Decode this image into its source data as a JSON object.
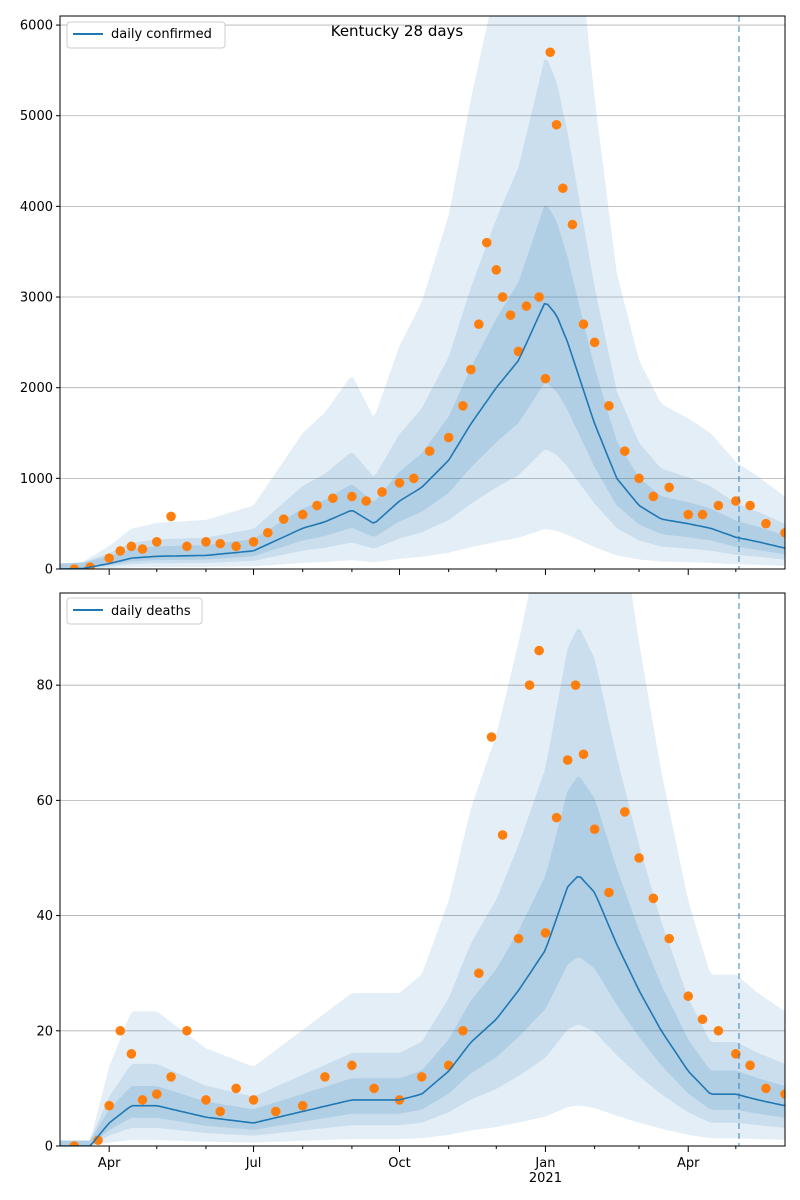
{
  "title": "Kentucky 28 days",
  "colors": {
    "model_line": "#1f77b4",
    "observed_points": "#ff7f0e",
    "band": "#1f77b4",
    "grid": "#b0b0b0",
    "vline": "#1f77b4"
  },
  "x_axis": {
    "major_ticks": [
      {
        "date": "2020-04-01",
        "label": "Apr",
        "sublabel": ""
      },
      {
        "date": "2020-07-01",
        "label": "Jul",
        "sublabel": ""
      },
      {
        "date": "2020-10-01",
        "label": "Oct",
        "sublabel": ""
      },
      {
        "date": "2021-01-01",
        "label": "Jan",
        "sublabel": "2021"
      },
      {
        "date": "2021-04-01",
        "label": "Apr",
        "sublabel": ""
      }
    ],
    "minor_ticks": [
      "2020-05-01",
      "2020-06-01",
      "2020-08-01",
      "2020-09-01",
      "2020-11-01",
      "2020-12-01",
      "2021-02-01",
      "2021-03-01",
      "2021-05-01"
    ],
    "range": [
      "2020-03-01",
      "2021-06-01"
    ],
    "forecast_start": "2021-05-03"
  },
  "chart_data": [
    {
      "type": "line",
      "legend": "daily confirmed",
      "legend_position": "upper-left",
      "ylim": [
        0,
        6100
      ],
      "yticks": [
        0,
        1000,
        2000,
        3000,
        4000,
        5000,
        6000
      ],
      "grid": "horizontal",
      "series": [
        {
          "name": "daily confirmed",
          "kind": "model-median",
          "x": [
            "2020-03-01",
            "2020-03-15",
            "2020-04-01",
            "2020-04-15",
            "2020-05-01",
            "2020-06-01",
            "2020-07-01",
            "2020-08-01",
            "2020-08-15",
            "2020-09-01",
            "2020-09-15",
            "2020-10-01",
            "2020-10-15",
            "2020-11-01",
            "2020-11-15",
            "2020-12-01",
            "2020-12-15",
            "2021-01-01",
            "2021-01-08",
            "2021-01-15",
            "2021-02-01",
            "2021-02-15",
            "2021-03-01",
            "2021-03-15",
            "2021-04-01",
            "2021-04-15",
            "2021-05-01",
            "2021-05-15",
            "2021-06-01"
          ],
          "y": [
            0,
            5,
            60,
            120,
            140,
            150,
            200,
            450,
            520,
            650,
            500,
            750,
            900,
            1200,
            1600,
            2000,
            2300,
            2950,
            2800,
            2500,
            1600,
            1000,
            700,
            550,
            500,
            450,
            350,
            300,
            230
          ]
        },
        {
          "name": "",
          "kind": "observed",
          "x": [
            "2020-03-10",
            "2020-03-20",
            "2020-04-01",
            "2020-04-08",
            "2020-04-15",
            "2020-04-22",
            "2020-05-01",
            "2020-05-10",
            "2020-05-20",
            "2020-06-01",
            "2020-06-10",
            "2020-06-20",
            "2020-07-01",
            "2020-07-10",
            "2020-07-20",
            "2020-08-01",
            "2020-08-10",
            "2020-08-20",
            "2020-09-01",
            "2020-09-10",
            "2020-09-20",
            "2020-10-01",
            "2020-10-10",
            "2020-10-20",
            "2020-11-01",
            "2020-11-10",
            "2020-11-15",
            "2020-11-20",
            "2020-11-25",
            "2020-12-01",
            "2020-12-05",
            "2020-12-10",
            "2020-12-15",
            "2020-12-20",
            "2020-12-28",
            "2021-01-01",
            "2021-01-04",
            "2021-01-08",
            "2021-01-12",
            "2021-01-18",
            "2021-01-25",
            "2021-02-01",
            "2021-02-10",
            "2021-02-20",
            "2021-03-01",
            "2021-03-10",
            "2021-03-20",
            "2021-04-01",
            "2021-04-10",
            "2021-04-20",
            "2021-05-01",
            "2021-05-10",
            "2021-05-20",
            "2021-06-01"
          ],
          "y": [
            0,
            20,
            120,
            200,
            250,
            220,
            300,
            580,
            250,
            300,
            280,
            250,
            300,
            400,
            550,
            600,
            700,
            780,
            800,
            750,
            850,
            950,
            1000,
            1300,
            1450,
            1800,
            2200,
            2700,
            3600,
            3300,
            3000,
            2800,
            2400,
            2900,
            3000,
            2100,
            5700,
            4900,
            4200,
            3800,
            2700,
            2500,
            1800,
            1300,
            1000,
            800,
            900,
            600,
            600,
            700,
            750,
            700,
            500,
            400
          ]
        }
      ]
    },
    {
      "type": "line",
      "legend": "daily deaths",
      "legend_position": "upper-left",
      "ylim": [
        0,
        96
      ],
      "yticks": [
        0,
        20,
        40,
        60,
        80
      ],
      "grid": "horizontal",
      "series": [
        {
          "name": "daily deaths",
          "kind": "model-median",
          "x": [
            "2020-03-01",
            "2020-03-20",
            "2020-04-01",
            "2020-04-15",
            "2020-05-01",
            "2020-06-01",
            "2020-07-01",
            "2020-08-01",
            "2020-09-01",
            "2020-10-01",
            "2020-10-15",
            "2020-11-01",
            "2020-11-15",
            "2020-12-01",
            "2020-12-15",
            "2021-01-01",
            "2021-01-15",
            "2021-01-22",
            "2021-02-01",
            "2021-02-15",
            "2021-03-01",
            "2021-03-15",
            "2021-04-01",
            "2021-04-15",
            "2021-05-01",
            "2021-05-15",
            "2021-06-01"
          ],
          "y": [
            0,
            0,
            4,
            7,
            7,
            5,
            4,
            6,
            8,
            8,
            9,
            13,
            18,
            22,
            27,
            34,
            45,
            47,
            44,
            35,
            27,
            20,
            13,
            9,
            9,
            8,
            7
          ]
        },
        {
          "name": "",
          "kind": "observed",
          "x": [
            "2020-03-10",
            "2020-03-25",
            "2020-04-01",
            "2020-04-08",
            "2020-04-15",
            "2020-04-22",
            "2020-05-01",
            "2020-05-10",
            "2020-05-20",
            "2020-06-01",
            "2020-06-10",
            "2020-06-20",
            "2020-07-01",
            "2020-07-15",
            "2020-08-01",
            "2020-08-15",
            "2020-09-01",
            "2020-09-15",
            "2020-10-01",
            "2020-10-15",
            "2020-11-01",
            "2020-11-10",
            "2020-11-20",
            "2020-11-28",
            "2020-12-05",
            "2020-12-15",
            "2020-12-22",
            "2020-12-28",
            "2021-01-01",
            "2021-01-08",
            "2021-01-15",
            "2021-01-20",
            "2021-01-25",
            "2021-02-01",
            "2021-02-10",
            "2021-02-20",
            "2021-03-01",
            "2021-03-10",
            "2021-03-20",
            "2021-04-01",
            "2021-04-10",
            "2021-04-20",
            "2021-05-01",
            "2021-05-10",
            "2021-05-20",
            "2021-06-01"
          ],
          "y": [
            0,
            1,
            7,
            20,
            16,
            8,
            9,
            12,
            20,
            8,
            6,
            10,
            8,
            6,
            7,
            12,
            14,
            10,
            8,
            12,
            14,
            20,
            30,
            71,
            54,
            36,
            80,
            86,
            37,
            57,
            67,
            80,
            68,
            55,
            44,
            58,
            50,
            43,
            36,
            26,
            22,
            20,
            16,
            14,
            10,
            9
          ]
        }
      ]
    }
  ]
}
